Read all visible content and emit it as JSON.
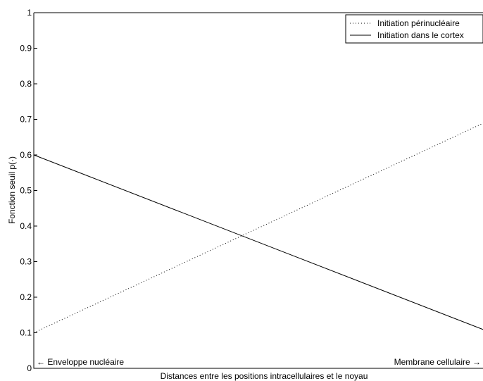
{
  "chart_data": {
    "type": "line",
    "xlabel": "Distances entre les positions intracellulaires et le noyau",
    "ylabel": "Fonction seuil p(·)",
    "xlim": [
      0,
      1
    ],
    "ylim": [
      0,
      1
    ],
    "yticks": [
      "0",
      "0.1",
      "0.2",
      "0.3",
      "0.4",
      "0.5",
      "0.6",
      "0.7",
      "0.8",
      "0.9",
      "1"
    ],
    "grid": false,
    "legend_position": "top-right",
    "series": [
      {
        "name": "Initiation périnucléaire",
        "style": "dotted",
        "x": [
          0,
          1
        ],
        "y": [
          0.1,
          0.7
        ]
      },
      {
        "name": "Initiation dans le cortex",
        "style": "solid",
        "x": [
          0,
          1
        ],
        "y": [
          0.6,
          0.1
        ]
      }
    ],
    "annotations": {
      "left": "← Enveloppe nucléaire",
      "right": "Membrane cellulaire →"
    }
  }
}
